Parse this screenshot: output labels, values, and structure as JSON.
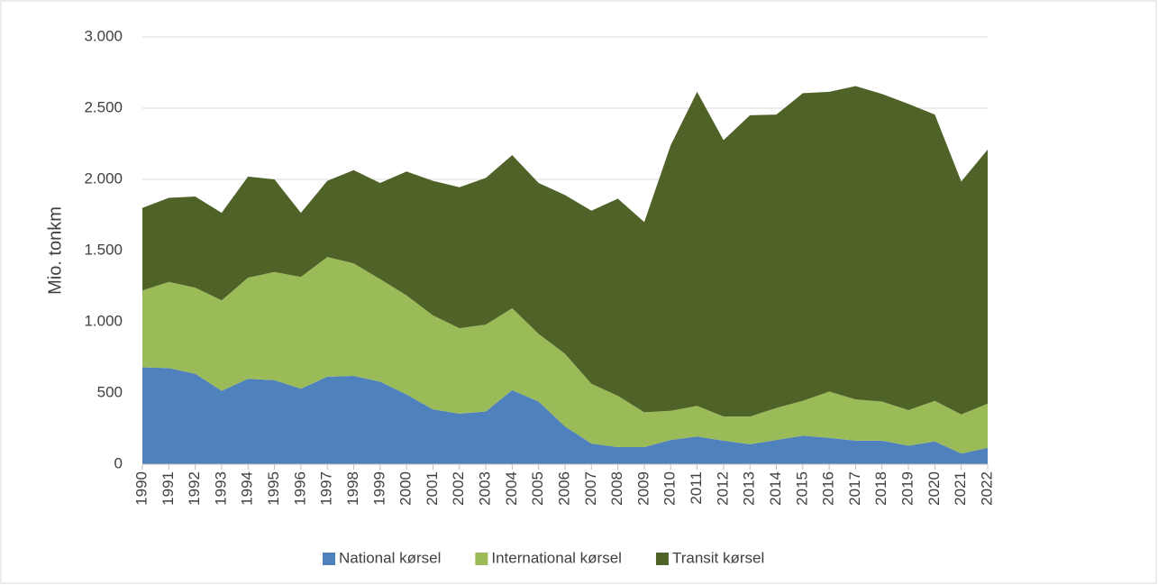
{
  "chart_data": {
    "type": "stacked_area",
    "y_label": "Mio. tonkm",
    "categories": [
      "1990",
      "1991",
      "1992",
      "1993",
      "1994",
      "1995",
      "1996",
      "1997",
      "1998",
      "1999",
      "2000",
      "2001",
      "2002",
      "2003",
      "2004",
      "2005",
      "2006",
      "2007",
      "2008",
      "2009",
      "2010",
      "2011",
      "2012",
      "2013",
      "2014",
      "2015",
      "2016",
      "2017",
      "2018",
      "2019",
      "2020",
      "2021",
      "2022"
    ],
    "series": [
      {
        "name": "National kørsel",
        "color": "#4f81bd",
        "values": [
          680,
          675,
          635,
          515,
          600,
          590,
          530,
          615,
          620,
          580,
          490,
          385,
          355,
          370,
          520,
          440,
          265,
          145,
          120,
          120,
          170,
          195,
          165,
          140,
          170,
          200,
          185,
          165,
          165,
          130,
          160,
          75,
          115
        ]
      },
      {
        "name": "International kørsel",
        "color": "#9bbb59",
        "values": [
          540,
          605,
          605,
          635,
          710,
          760,
          785,
          840,
          790,
          720,
          695,
          660,
          600,
          610,
          575,
          475,
          510,
          420,
          360,
          245,
          205,
          215,
          170,
          195,
          225,
          245,
          325,
          290,
          275,
          250,
          285,
          275,
          310
        ]
      },
      {
        "name": "Transit kørsel",
        "color": "#4f6228",
        "values": [
          580,
          590,
          640,
          615,
          710,
          650,
          450,
          535,
          655,
          675,
          870,
          945,
          990,
          1030,
          1075,
          1060,
          1115,
          1215,
          1385,
          1335,
          1865,
          2205,
          1940,
          2115,
          2060,
          2160,
          2105,
          2200,
          2160,
          2150,
          2010,
          1635,
          1785
        ]
      }
    ],
    "ylim": [
      0,
      3000
    ],
    "yticks": [
      0,
      500,
      {
        "value": 1000,
        "label": "1.000"
      },
      {
        "value": 1500,
        "label": "1.500"
      },
      {
        "value": 2000,
        "label": "2.000"
      },
      {
        "value": 2500,
        "label": "2.500"
      },
      {
        "value": 3000,
        "label": "3.000"
      }
    ],
    "grid": true,
    "legend": "bottom"
  }
}
